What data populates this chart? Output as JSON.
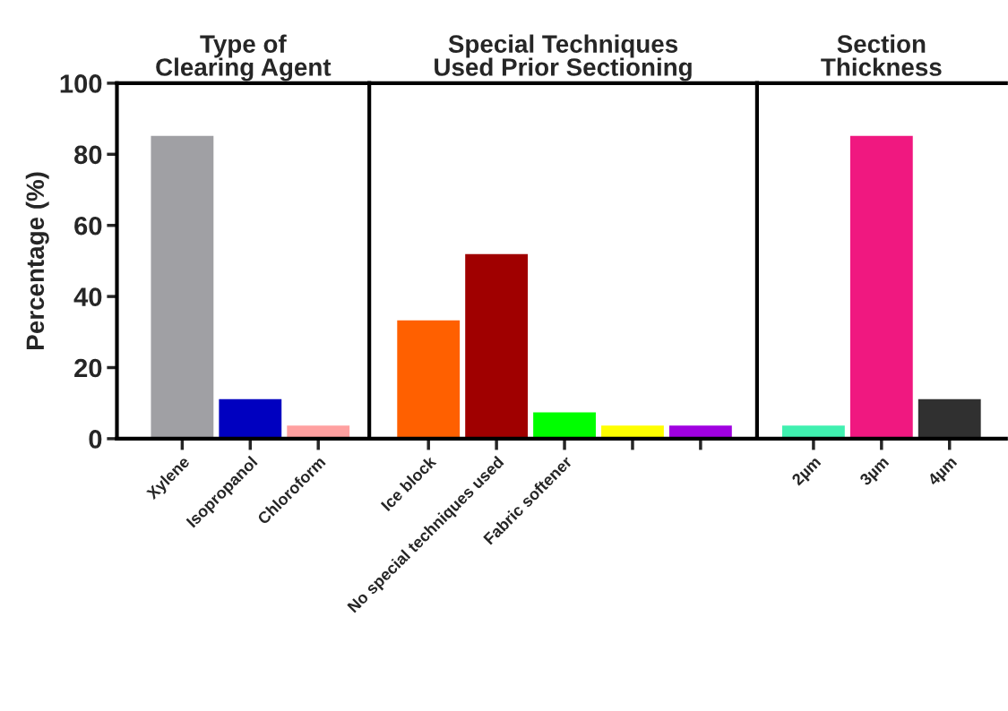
{
  "chart_data": [
    {
      "type": "bar",
      "title": "Type of\nClearing Agent",
      "ylabel": "Percentage (%)",
      "categories": [
        "Xylene",
        "Isopropanol",
        "Chloroform"
      ],
      "values": [
        85.2,
        11.1,
        3.7
      ],
      "colors": [
        "#a0a0a4",
        "#0000c0",
        "#ffa0a0"
      ],
      "ylim": [
        0,
        100
      ],
      "yticks": [
        0,
        20,
        40,
        60,
        80,
        100
      ],
      "grid": false,
      "legend": false
    },
    {
      "type": "bar",
      "title": "Special Techniques\nUsed Prior Sectioning",
      "categories": [
        "Ice block",
        "No special techniques used",
        "Fabric softener",
        null,
        null
      ],
      "values": [
        33.3,
        51.9,
        7.4,
        3.7,
        3.7
      ],
      "colors": [
        "#ff6000",
        "#a00000",
        "#00ff00",
        "#ffff00",
        "#a000e0"
      ],
      "ylim": [
        0,
        100
      ],
      "yticks": [
        0,
        20,
        40,
        60,
        80,
        100
      ],
      "tick_labels": "x",
      "grid": false,
      "legend": false
    },
    {
      "type": "bar",
      "title": "Section\nThickness",
      "categories": [
        "2µm",
        "3µm",
        "4µm"
      ],
      "values": [
        3.7,
        85.2,
        11.1
      ],
      "colors": [
        "#40f0b0",
        "#f01880",
        "#303030"
      ],
      "ylim": [
        0,
        100
      ],
      "yticks": [
        0,
        20,
        40,
        60,
        80,
        100
      ],
      "tick_labels": "x",
      "grid": false,
      "legend": false
    }
  ]
}
